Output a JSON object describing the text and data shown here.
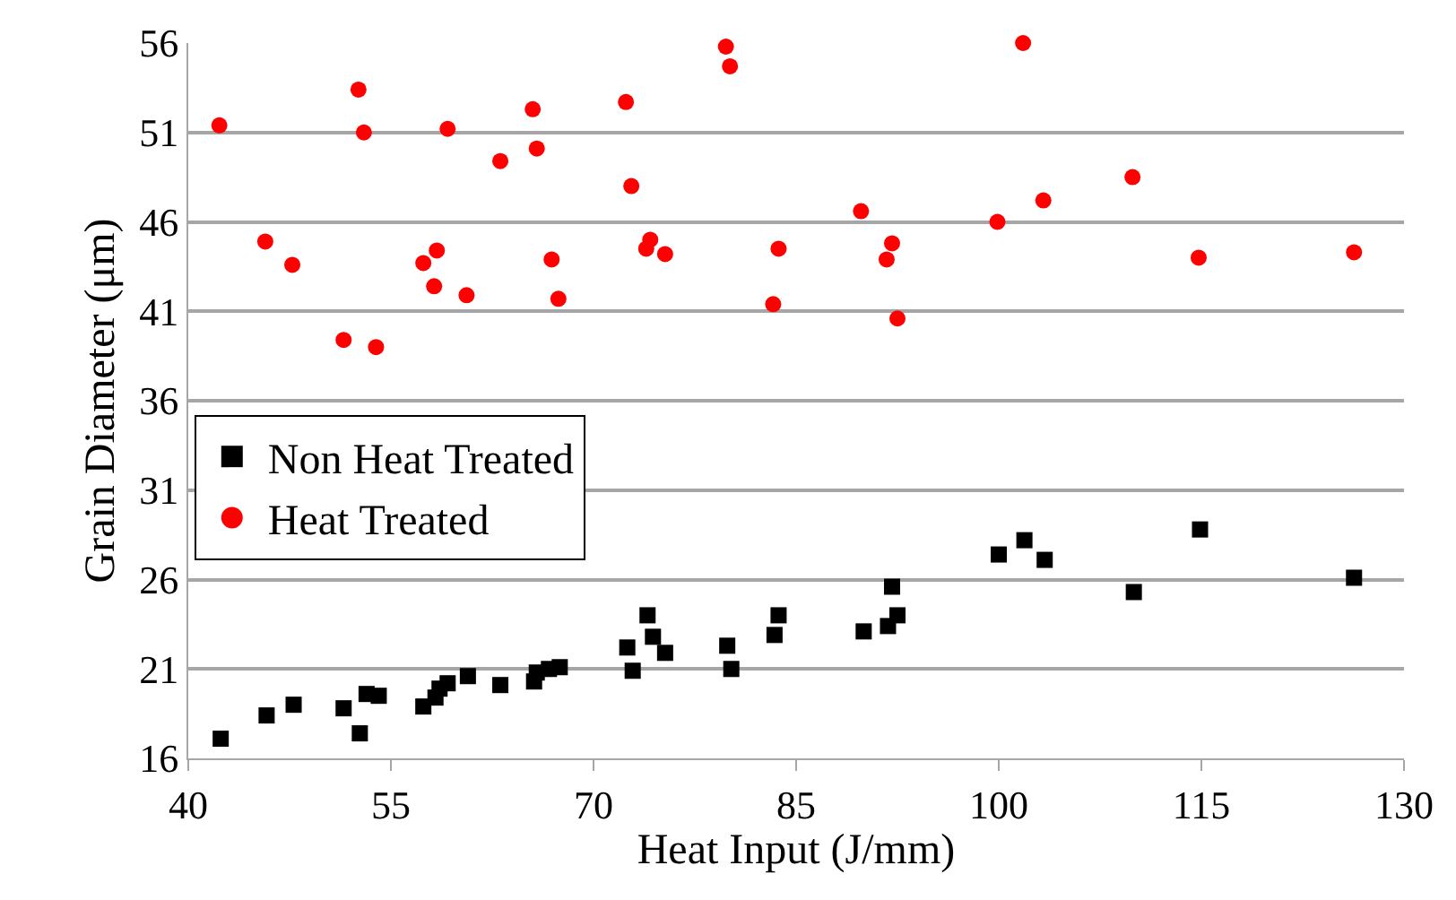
{
  "chart_data": {
    "type": "scatter",
    "xlabel": "Heat Input (J/mm)",
    "ylabel": "Grain Diameter (μm)",
    "xlim": [
      40,
      130
    ],
    "xticks": [
      40,
      55,
      70,
      85,
      100,
      115,
      130
    ],
    "ylim": [
      16,
      56
    ],
    "yticks": [
      16,
      21,
      26,
      31,
      36,
      41,
      46,
      51,
      56
    ],
    "grid": "y",
    "legend": "left",
    "series": [
      {
        "name": "Non Heat Treated",
        "color": "#000000",
        "marker": "square",
        "x": [
          42.4,
          45.8,
          47.8,
          51.5,
          52.7,
          53.2,
          54.1,
          57.4,
          58.3,
          58.6,
          59.2,
          60.7,
          63.1,
          65.6,
          65.8,
          66.7,
          67.5,
          72.5,
          72.9,
          74.0,
          74.4,
          75.3,
          79.9,
          80.2,
          83.4,
          83.7,
          90.0,
          91.8,
          92.5,
          92.1,
          100.0,
          101.9,
          103.4,
          110.0,
          114.9,
          126.3
        ],
        "values": [
          17.1,
          18.4,
          19.0,
          18.8,
          17.4,
          19.6,
          19.5,
          18.9,
          19.4,
          19.9,
          20.2,
          20.6,
          20.1,
          20.3,
          20.8,
          21.0,
          21.1,
          22.2,
          20.9,
          24.0,
          22.8,
          21.9,
          22.3,
          21.0,
          22.9,
          24.0,
          23.1,
          23.4,
          24.0,
          25.6,
          27.4,
          28.2,
          27.1,
          25.3,
          28.8,
          26.1
        ]
      },
      {
        "name": "Heat Treated",
        "color": "#ff0000",
        "marker": "circle",
        "x": [
          42.3,
          45.7,
          47.7,
          51.5,
          52.6,
          53.0,
          53.9,
          57.4,
          58.4,
          58.2,
          59.2,
          60.6,
          63.1,
          65.5,
          65.8,
          66.9,
          67.4,
          72.4,
          72.8,
          74.2,
          73.9,
          75.3,
          79.8,
          80.1,
          83.7,
          83.3,
          101.8,
          89.8,
          92.1,
          91.7,
          92.5,
          99.9,
          103.3,
          109.9,
          114.8,
          126.3
        ],
        "values": [
          51.4,
          44.9,
          43.6,
          39.4,
          53.4,
          51.0,
          39.0,
          43.7,
          44.4,
          42.4,
          51.2,
          41.9,
          49.4,
          52.3,
          50.1,
          43.9,
          41.7,
          52.7,
          48.0,
          45.0,
          44.5,
          44.2,
          55.8,
          54.7,
          44.5,
          41.4,
          56.0,
          46.6,
          44.8,
          43.9,
          40.6,
          46.0,
          47.2,
          48.5,
          44.0,
          44.3
        ]
      }
    ]
  }
}
